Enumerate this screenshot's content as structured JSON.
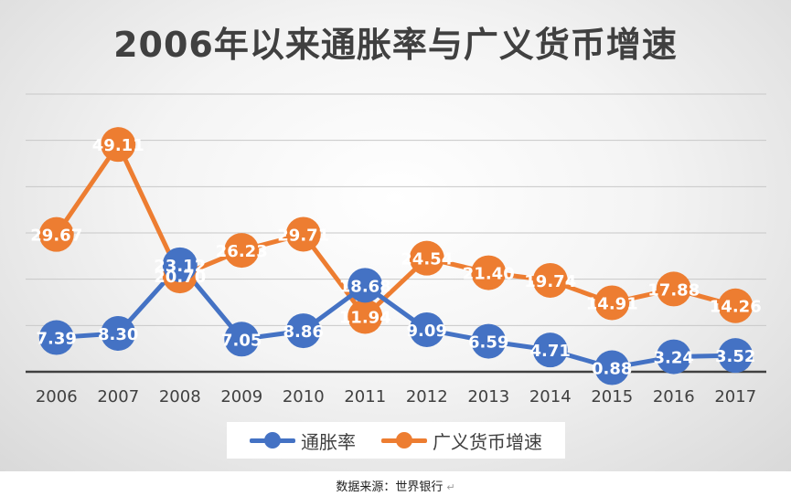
{
  "chart_data": {
    "type": "line",
    "title": "2006年以来通胀率与广义货币增速",
    "x": [
      "2006",
      "2007",
      "2008",
      "2009",
      "2010",
      "2011",
      "2012",
      "2013",
      "2014",
      "2015",
      "2016",
      "2017"
    ],
    "series": [
      {
        "name": "通胀率",
        "color": "#4472C4",
        "values": [
          7.39,
          8.3,
          23.12,
          7.05,
          8.86,
          18.68,
          9.09,
          6.59,
          4.71,
          0.88,
          3.24,
          3.52
        ],
        "labels": [
          "7.39",
          "8.30",
          "23.12",
          "7.05",
          "8.86",
          "18.68",
          "9.09",
          "6.59",
          "4.71",
          "0.88",
          "3.24",
          "3.52"
        ]
      },
      {
        "name": "广义货币增速",
        "color": "#ED7D31",
        "values": [
          29.67,
          49.11,
          20.7,
          26.23,
          29.71,
          11.94,
          24.54,
          21.4,
          19.74,
          14.91,
          17.88,
          14.26
        ],
        "labels": [
          "29.67",
          "49.11",
          "20.70",
          "26.23",
          "29.71",
          "11.94",
          "24.54",
          "21.40",
          "19.74",
          "14.91",
          "17.88",
          "14.26"
        ]
      }
    ],
    "ylim": [
      0,
      60
    ],
    "grid": true,
    "legend": "bottom",
    "xlabel": "",
    "ylabel": ""
  },
  "source": "数据来源：世界银行",
  "source_mark": "↵"
}
